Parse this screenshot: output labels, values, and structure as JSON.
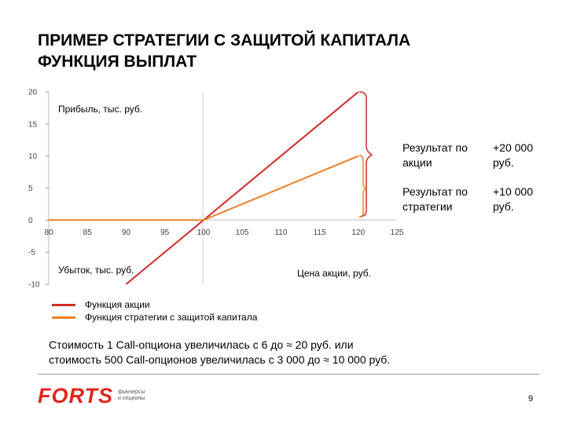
{
  "title": {
    "line1": "ПРИМЕР СТРАТЕГИИ С ЗАЩИТОЙ КАПИТАЛА",
    "line2": "ФУНКЦИЯ ВЫПЛАТ"
  },
  "chart_data": {
    "type": "line",
    "xlim": [
      80,
      125
    ],
    "ylim": [
      -10,
      20
    ],
    "x_ticks": [
      "80",
      "85",
      "90",
      "95",
      "100",
      "105",
      "110",
      "115",
      "120",
      "125"
    ],
    "y_ticks": [
      "20",
      "15",
      "10",
      "5",
      "0",
      "-5",
      "-10"
    ],
    "series": [
      {
        "name": "Функция акции",
        "color": "#d02b27",
        "points": [
          [
            90,
            -10
          ],
          [
            120,
            20
          ]
        ]
      },
      {
        "name": "Функция стратегии с защитой капитала",
        "color": "#ee7f28",
        "points": [
          [
            80,
            0
          ],
          [
            100,
            0
          ],
          [
            120,
            10
          ]
        ]
      }
    ],
    "annotations": {
      "profit_label": "Прибыль, тыс. руб.",
      "loss_label": "Убыток, тыс. руб.",
      "x_axis_label": "Цена акции, руб.",
      "result_stock_label_line1": "Результат по",
      "result_stock_label_line2": "акции",
      "result_stock_value_line1": "+20 000",
      "result_stock_value_line2": "руб.",
      "result_strategy_label_line1": "Результат по",
      "result_strategy_label_line2": "стратегии",
      "result_strategy_value_line1": "+10 000",
      "result_strategy_value_line2": "руб."
    },
    "grid": false
  },
  "note": {
    "line1": "Стоимость 1 Call-опциона увеличилась с 6 до ≈ 20 руб. или",
    "line2": "стоимость 500 Call-опционов увеличилась с 3 000 до ≈ 10 000 руб."
  },
  "logo": {
    "word": "FORTS",
    "sub_line1": "фьючерсы",
    "sub_line2": "и опционы",
    "color": "#e2261c"
  },
  "page_number": "9"
}
